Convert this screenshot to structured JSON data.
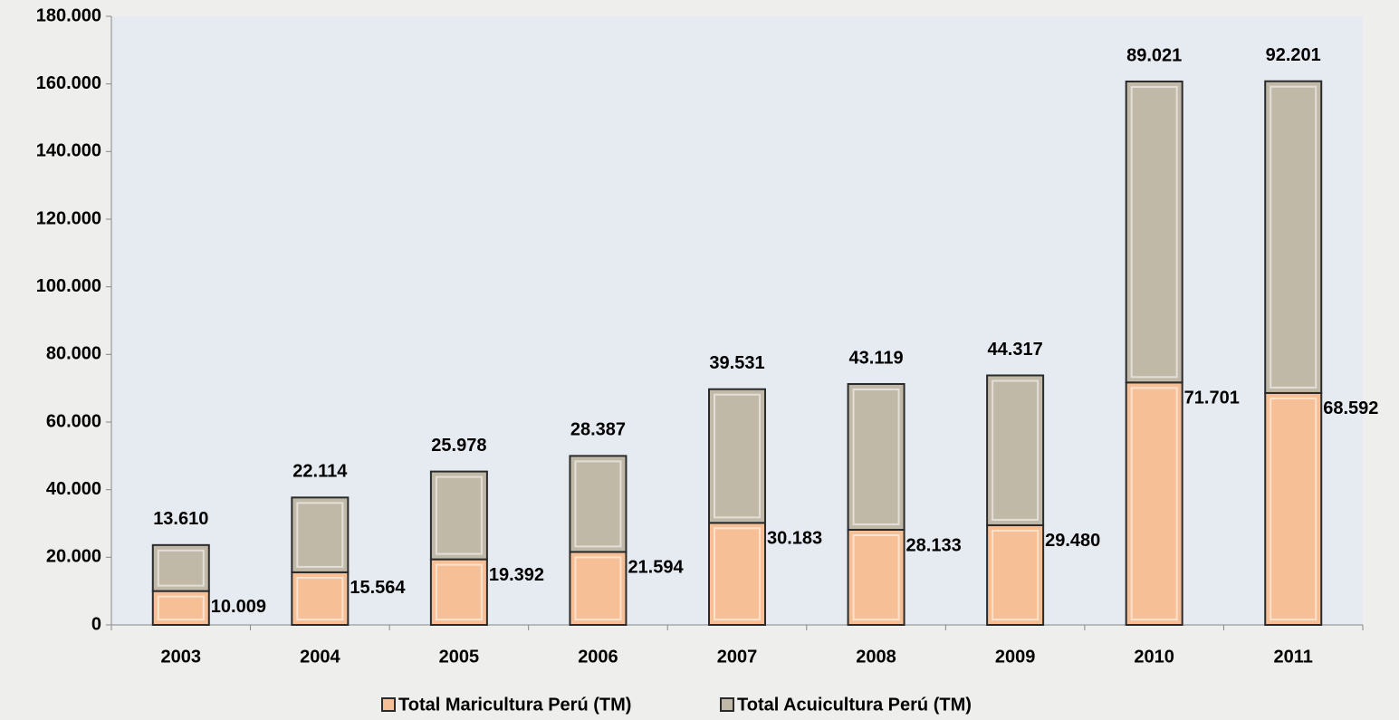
{
  "chart_data": {
    "type": "stacked_bar",
    "categories": [
      "2003",
      "2004",
      "2005",
      "2006",
      "2007",
      "2008",
      "2009",
      "2010",
      "2011"
    ],
    "series": [
      {
        "name": "Total Maricultura Perú (TM)",
        "color": "#f7bf95",
        "values": [
          10009,
          15564,
          19392,
          21594,
          30183,
          28133,
          29480,
          71701,
          68592
        ],
        "value_labels": [
          "10.009",
          "15.564",
          "19.392",
          "21.594",
          "30.183",
          "28.133",
          "29.480",
          "71.701",
          "68.592"
        ]
      },
      {
        "name": "Total Acuicultura Perú (TM)",
        "color": "#c1b9a8",
        "values": [
          13610,
          22114,
          25978,
          28387,
          39531,
          43119,
          44317,
          89021,
          92201
        ],
        "value_labels": [
          "13.610",
          "22.114",
          "25.978",
          "28.387",
          "39.531",
          "43.119",
          "44.317",
          "89.021",
          "92.201"
        ]
      }
    ],
    "ylim": [
      0,
      180000
    ],
    "yticks": [
      0,
      {
        "value": 20000,
        "label": "20.000"
      },
      {
        "value": 40000,
        "label": "40.000"
      },
      {
        "value": 60000,
        "label": "60.000"
      },
      {
        "value": 80000,
        "label": "80.000"
      },
      {
        "value": 100000,
        "label": "100.000"
      },
      {
        "value": 120000,
        "label": "120.000"
      },
      {
        "value": 140000,
        "label": "140.000"
      },
      {
        "value": 160000,
        "label": "160.000"
      },
      {
        "value": 180000,
        "label": "180.000"
      }
    ]
  }
}
